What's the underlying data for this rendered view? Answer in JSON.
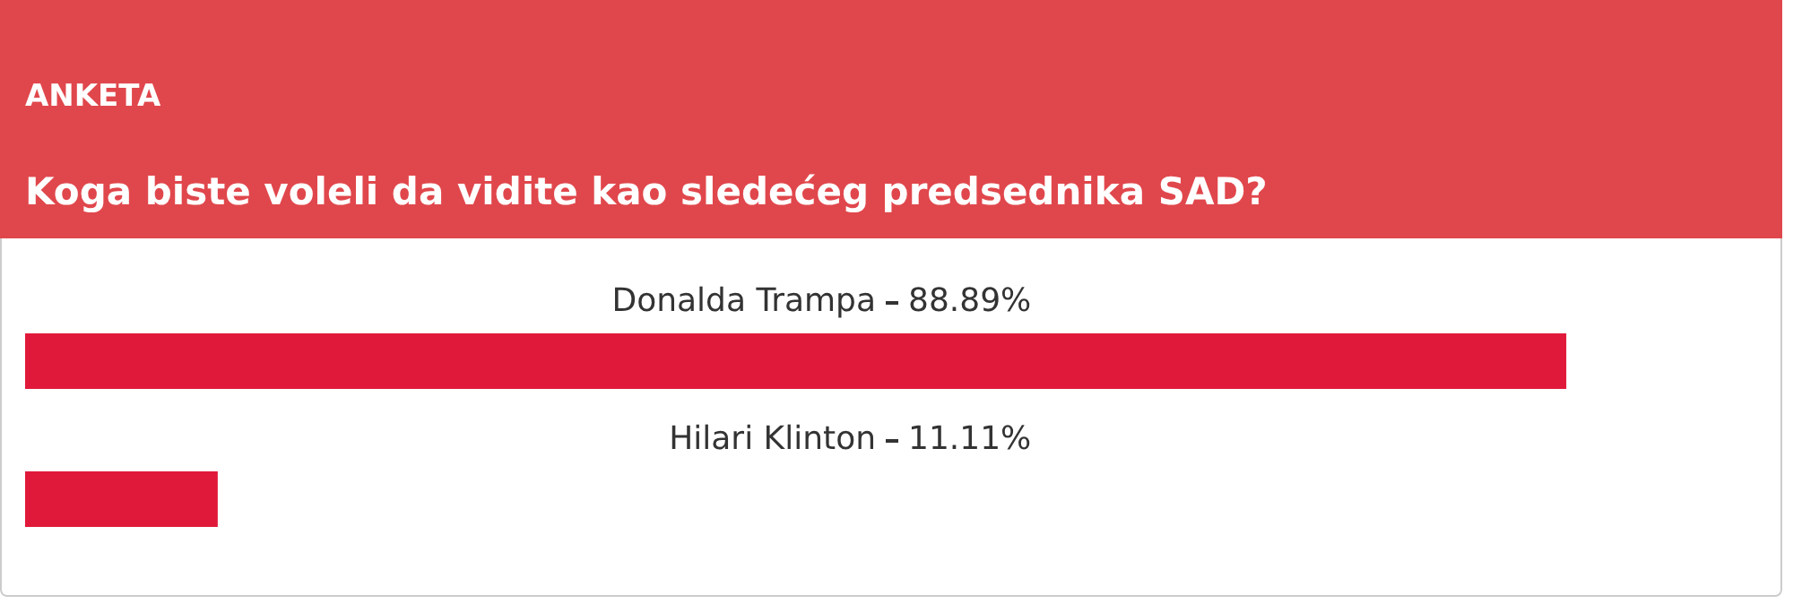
{
  "chart_data": {
    "type": "bar",
    "orientation": "horizontal",
    "title": "ANKETA",
    "subtitle": "Koga biste voleli da vidite kao sledećeg predsednika SAD?",
    "categories": [
      "Donalda Trampa",
      "Hilari Klinton"
    ],
    "values": [
      88.89,
      11.11
    ],
    "value_labels": [
      "88.89%",
      "11.11%"
    ],
    "color": "#e0193a",
    "tick_labels": false
  }
}
